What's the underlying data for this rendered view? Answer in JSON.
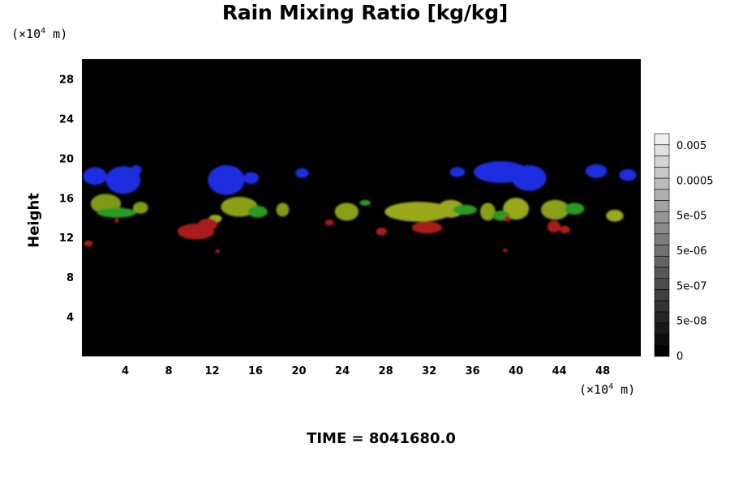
{
  "chart_data": {
    "type": "heatmap",
    "title": "Rain Mixing Ratio [kg/kg]",
    "ylabel": "Height",
    "xlabel": "",
    "x_unit": "(×10",
    "y_unit": "(×10",
    "unit_exp": "4",
    "unit_tail": " m)",
    "footer": "TIME = 8041680.0",
    "xlim": [
      0,
      51.5
    ],
    "ylim": [
      0,
      30
    ],
    "x_ticks": [
      4,
      8,
      12,
      16,
      20,
      24,
      28,
      32,
      36,
      40,
      44,
      48
    ],
    "y_ticks": [
      4,
      8,
      12,
      16,
      20,
      24,
      28
    ],
    "background": "#000000",
    "colorbar": {
      "levels": 20,
      "labels": [
        "0",
        "5e-08",
        "5e-07",
        "5e-06",
        "5e-05",
        "0.0005",
        "0.005"
      ]
    },
    "regions": [
      {
        "color": "#1e2ee0",
        "x": 1.2,
        "y": 18.2,
        "rx": 1.1,
        "ry": 0.9
      },
      {
        "color": "#1e2ee0",
        "x": 3.8,
        "y": 17.8,
        "rx": 1.6,
        "ry": 1.4
      },
      {
        "color": "#1e2ee0",
        "x": 5.0,
        "y": 18.8,
        "rx": 0.5,
        "ry": 0.5
      },
      {
        "color": "#1e2ee0",
        "x": 13.3,
        "y": 17.8,
        "rx": 1.7,
        "ry": 1.5
      },
      {
        "color": "#1e2ee0",
        "x": 15.6,
        "y": 18.0,
        "rx": 0.7,
        "ry": 0.6
      },
      {
        "color": "#1e2ee0",
        "x": 20.3,
        "y": 18.5,
        "rx": 0.6,
        "ry": 0.5
      },
      {
        "color": "#1e2ee0",
        "x": 38.6,
        "y": 18.6,
        "rx": 2.5,
        "ry": 1.1
      },
      {
        "color": "#1e2ee0",
        "x": 41.2,
        "y": 18.0,
        "rx": 1.6,
        "ry": 1.3
      },
      {
        "color": "#1e2ee0",
        "x": 34.6,
        "y": 18.6,
        "rx": 0.7,
        "ry": 0.5
      },
      {
        "color": "#1e2ee0",
        "x": 47.4,
        "y": 18.7,
        "rx": 1.0,
        "ry": 0.7
      },
      {
        "color": "#1e2ee0",
        "x": 50.3,
        "y": 18.3,
        "rx": 0.8,
        "ry": 0.6
      },
      {
        "color": "#7f9a14",
        "x": 2.2,
        "y": 15.4,
        "rx": 1.4,
        "ry": 1.0
      },
      {
        "color": "#2a9a22",
        "x": 3.2,
        "y": 14.5,
        "rx": 1.8,
        "ry": 0.5
      },
      {
        "color": "#7f9a14",
        "x": 5.4,
        "y": 15.0,
        "rx": 0.7,
        "ry": 0.6
      },
      {
        "color": "#8a9e16",
        "x": 14.5,
        "y": 15.1,
        "rx": 1.7,
        "ry": 1.0
      },
      {
        "color": "#2a9a22",
        "x": 16.2,
        "y": 14.6,
        "rx": 0.9,
        "ry": 0.6
      },
      {
        "color": "#7f9a14",
        "x": 18.5,
        "y": 14.8,
        "rx": 0.6,
        "ry": 0.7
      },
      {
        "color": "#8aa018",
        "x": 24.4,
        "y": 14.6,
        "rx": 1.1,
        "ry": 0.9
      },
      {
        "color": "#2a9a22",
        "x": 26.1,
        "y": 15.5,
        "rx": 0.5,
        "ry": 0.3
      },
      {
        "color": "#9aa81a",
        "x": 31.0,
        "y": 14.6,
        "rx": 3.1,
        "ry": 1.0
      },
      {
        "color": "#9aa81a",
        "x": 34.0,
        "y": 14.9,
        "rx": 1.2,
        "ry": 0.9
      },
      {
        "color": "#2a9a22",
        "x": 35.3,
        "y": 14.8,
        "rx": 1.1,
        "ry": 0.5
      },
      {
        "color": "#8aa018",
        "x": 37.4,
        "y": 14.6,
        "rx": 0.7,
        "ry": 0.9
      },
      {
        "color": "#9aa81a",
        "x": 40.0,
        "y": 14.9,
        "rx": 1.2,
        "ry": 1.1
      },
      {
        "color": "#2a9a22",
        "x": 38.6,
        "y": 14.2,
        "rx": 0.8,
        "ry": 0.5
      },
      {
        "color": "#8aa018",
        "x": 43.6,
        "y": 14.8,
        "rx": 1.3,
        "ry": 1.0
      },
      {
        "color": "#2a9a22",
        "x": 45.4,
        "y": 14.9,
        "rx": 0.9,
        "ry": 0.6
      },
      {
        "color": "#9aa81a",
        "x": 49.1,
        "y": 14.2,
        "rx": 0.8,
        "ry": 0.6
      },
      {
        "color": "#9aa81a",
        "x": 12.3,
        "y": 13.9,
        "rx": 0.6,
        "ry": 0.4
      },
      {
        "color": "#a81c1c",
        "x": 10.5,
        "y": 12.6,
        "rx": 1.7,
        "ry": 0.8
      },
      {
        "color": "#a81c1c",
        "x": 11.6,
        "y": 13.3,
        "rx": 0.9,
        "ry": 0.6
      },
      {
        "color": "#a81c1c",
        "x": 0.6,
        "y": 11.4,
        "rx": 0.4,
        "ry": 0.3
      },
      {
        "color": "#a81c1c",
        "x": 27.6,
        "y": 12.6,
        "rx": 0.5,
        "ry": 0.4
      },
      {
        "color": "#a81c1c",
        "x": 31.8,
        "y": 13.0,
        "rx": 1.4,
        "ry": 0.6
      },
      {
        "color": "#a81c1c",
        "x": 43.5,
        "y": 13.1,
        "rx": 0.6,
        "ry": 0.6
      },
      {
        "color": "#a81c1c",
        "x": 44.5,
        "y": 12.8,
        "rx": 0.5,
        "ry": 0.4
      },
      {
        "color": "#a81c1c",
        "x": 39.2,
        "y": 13.9,
        "rx": 0.3,
        "ry": 0.3
      },
      {
        "color": "#a81c1c",
        "x": 22.8,
        "y": 13.5,
        "rx": 0.4,
        "ry": 0.3
      },
      {
        "color": "#a81c1c",
        "x": 12.5,
        "y": 10.6,
        "rx": 0.2,
        "ry": 0.2
      },
      {
        "color": "#a81c1c",
        "x": 39.0,
        "y": 10.7,
        "rx": 0.2,
        "ry": 0.2
      },
      {
        "color": "#a81c1c",
        "x": 3.2,
        "y": 13.7,
        "rx": 0.2,
        "ry": 0.2
      }
    ]
  }
}
